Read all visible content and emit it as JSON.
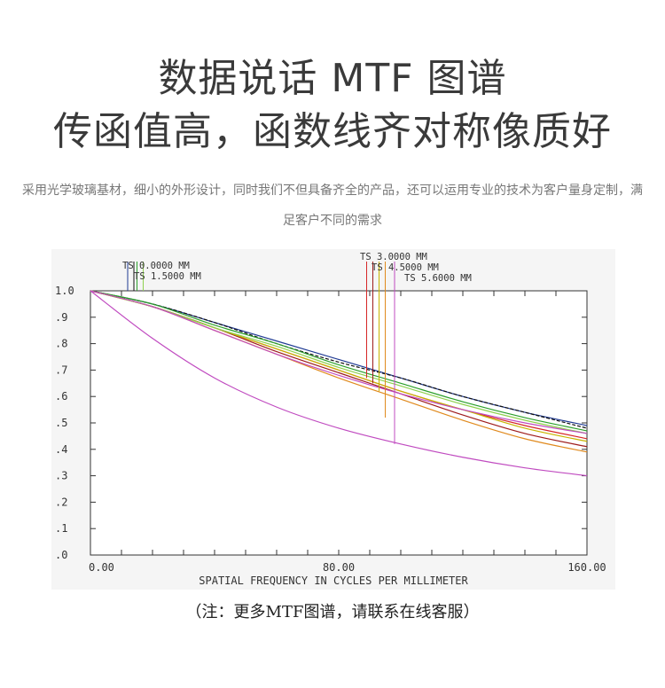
{
  "header": {
    "title_line1": "数据说话 MTF 图谱",
    "title_line2": "传函值高，函数线齐对称像质好",
    "description": "采用光学玻璃基材，细小的外形设计，同时我们不但具备齐全的产品，还可以运用专业的技术为客户量身定制，满足客户不同的需求"
  },
  "footer": {
    "note": "（注：更多MTF图谱，请联系在线客服）"
  },
  "chart_data": {
    "type": "line",
    "title": "",
    "xlabel": "SPATIAL FREQUENCY IN CYCLES PER MILLIMETER",
    "ylabel": "",
    "xlim": [
      0,
      160
    ],
    "ylim": [
      0,
      1.0
    ],
    "x_tick_labels": [
      "0.00",
      "80.00",
      "160.00"
    ],
    "y_tick_labels": [
      "1.0",
      ".9",
      ".8",
      ".7",
      ".6",
      ".5",
      ".4",
      ".3",
      ".2",
      ".1",
      ".0"
    ],
    "grid": false,
    "legend_entries": [
      "TS 0.0000 MM",
      "TS 1.5000 MM",
      "TS 3.0000 MM",
      "TS 4.5000 MM",
      "TS 5.6000 MM"
    ],
    "x": [
      0,
      20,
      40,
      60,
      80,
      100,
      120,
      140,
      160
    ],
    "series": [
      {
        "color": "#1f3a93",
        "values": [
          1.0,
          0.95,
          0.88,
          0.81,
          0.74,
          0.67,
          0.6,
          0.54,
          0.49
        ]
      },
      {
        "color": "#111111",
        "values": [
          1.0,
          0.95,
          0.88,
          0.8,
          0.73,
          0.67,
          0.6,
          0.54,
          0.48
        ]
      },
      {
        "color": "#2ca02c",
        "values": [
          1.0,
          0.95,
          0.87,
          0.8,
          0.72,
          0.65,
          0.58,
          0.52,
          0.47
        ]
      },
      {
        "color": "#d62728",
        "values": [
          1.0,
          0.94,
          0.86,
          0.78,
          0.7,
          0.62,
          0.55,
          0.49,
          0.44
        ]
      },
      {
        "color": "#9e1c1c",
        "values": [
          1.0,
          0.94,
          0.86,
          0.77,
          0.69,
          0.61,
          0.53,
          0.46,
          0.41
        ]
      },
      {
        "color": "#e08a1e",
        "values": [
          1.0,
          0.94,
          0.85,
          0.76,
          0.67,
          0.59,
          0.51,
          0.44,
          0.39
        ]
      },
      {
        "color": "#c8b400",
        "values": [
          1.0,
          0.94,
          0.86,
          0.78,
          0.7,
          0.62,
          0.55,
          0.48,
          0.43
        ]
      },
      {
        "color": "#8fd14f",
        "values": [
          1.0,
          0.94,
          0.86,
          0.79,
          0.71,
          0.64,
          0.57,
          0.51,
          0.46
        ]
      },
      {
        "color": "#c04bc0",
        "values": [
          1.0,
          0.94,
          0.85,
          0.76,
          0.68,
          0.61,
          0.55,
          0.5,
          0.46
        ]
      },
      {
        "color": "#c04bc0",
        "values": [
          1.0,
          0.82,
          0.67,
          0.56,
          0.48,
          0.42,
          0.37,
          0.33,
          0.3
        ]
      }
    ],
    "markers": [
      {
        "x": 12,
        "y": 1.0,
        "color": "#1f3a93"
      },
      {
        "x": 14,
        "y": 1.0,
        "color": "#111111"
      },
      {
        "x": 15,
        "y": 1.0,
        "color": "#2ca02c"
      },
      {
        "x": 17,
        "y": 1.0,
        "color": "#8fd14f"
      },
      {
        "x": 89,
        "y": 0.67,
        "color": "#d62728"
      },
      {
        "x": 91,
        "y": 0.65,
        "color": "#9e1c1c"
      },
      {
        "x": 93,
        "y": 0.62,
        "color": "#c8b400"
      },
      {
        "x": 95,
        "y": 0.52,
        "color": "#e08a1e"
      },
      {
        "x": 98,
        "y": 0.42,
        "color": "#c04bc0"
      }
    ]
  }
}
